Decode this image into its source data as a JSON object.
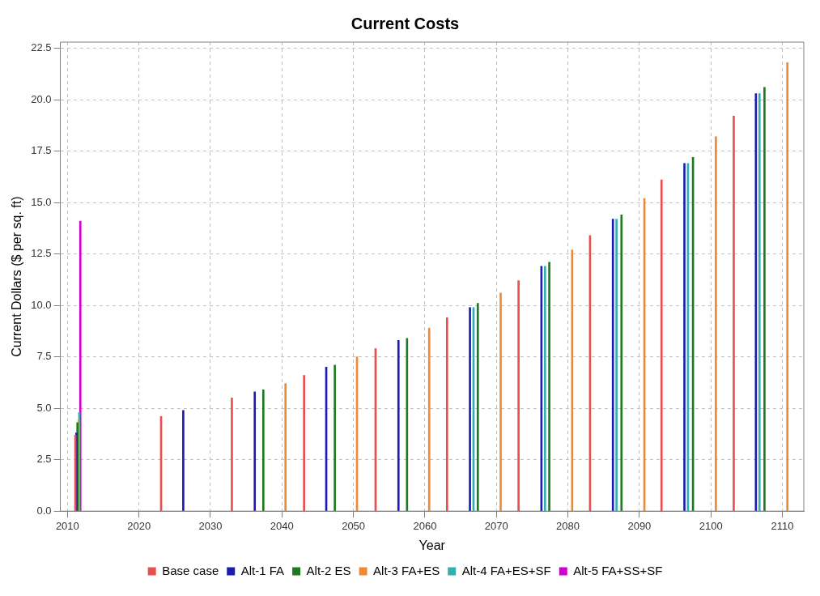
{
  "chart_data": {
    "type": "bar",
    "title": "Current Costs",
    "xlabel": "Year",
    "ylabel": "Current Dollars ($ per sq. ft)",
    "xlim": [
      2009,
      2113
    ],
    "xticks": [
      2010,
      2020,
      2030,
      2040,
      2050,
      2060,
      2070,
      2080,
      2090,
      2100,
      2110
    ],
    "ylim": [
      0,
      22.8
    ],
    "yticks": [
      {
        "value": 0,
        "label": "0.0"
      },
      {
        "value": 2.5,
        "label": "2.5"
      },
      {
        "value": 5,
        "label": "5.0"
      },
      {
        "value": 7.5,
        "label": "7.5"
      },
      {
        "value": 10,
        "label": "10.0"
      },
      {
        "value": 12.5,
        "label": "12.5"
      },
      {
        "value": 15,
        "label": "15.0"
      },
      {
        "value": 17.5,
        "label": "17.5"
      },
      {
        "value": 20,
        "label": "20.0"
      },
      {
        "value": 22.5,
        "label": "22.5"
      }
    ],
    "grid": true,
    "legend": "bottom",
    "series": [
      {
        "name": "Base case",
        "color": "#e8504f",
        "x": [
          2011.1,
          2023.1,
          2033.0,
          2043.1,
          2053.1,
          2063.1,
          2073.1,
          2083.1,
          2093.1,
          2103.2
        ],
        "values": [
          3.7,
          4.6,
          5.5,
          6.6,
          7.9,
          9.4,
          11.2,
          13.4,
          16.1,
          19.2
        ]
      },
      {
        "name": "Alt-1 FA",
        "color": "#1c1cb4",
        "x": [
          2011.25,
          2026.2,
          2036.2,
          2046.2,
          2056.3,
          2066.3,
          2076.3,
          2086.3,
          2096.3,
          2106.3
        ],
        "values": [
          3.8,
          4.9,
          5.8,
          7.0,
          8.3,
          9.9,
          11.9,
          14.2,
          16.9,
          20.3
        ]
      },
      {
        "name": "Alt-2 ES",
        "color": "#1e7a1e",
        "x": [
          2011.4,
          2037.4,
          2047.4,
          2057.5,
          2067.4,
          2077.4,
          2087.5,
          2097.5,
          2107.5
        ],
        "values": [
          4.3,
          5.9,
          7.1,
          8.4,
          10.1,
          12.1,
          14.4,
          17.2,
          20.6
        ]
      },
      {
        "name": "Alt-3 FA+ES",
        "color": "#f08a30",
        "x": [
          2011.55,
          2040.5,
          2050.5,
          2060.6,
          2070.6,
          2080.6,
          2090.7,
          2100.7,
          2110.7
        ],
        "values": [
          4.4,
          6.2,
          7.5,
          8.9,
          10.6,
          12.7,
          15.2,
          18.2,
          21.8
        ]
      },
      {
        "name": "Alt-4 FA+ES+SF",
        "color": "#30b0b0",
        "x": [
          2011.65,
          2066.8,
          2076.8,
          2086.8,
          2096.8,
          2106.8
        ],
        "values": [
          4.8,
          9.9,
          11.9,
          14.2,
          16.9,
          20.3
        ]
      },
      {
        "name": "Alt-5 FA+SS+SF",
        "color": "#d000d0",
        "x": [
          2011.8
        ],
        "values": [
          14.1
        ]
      }
    ]
  }
}
